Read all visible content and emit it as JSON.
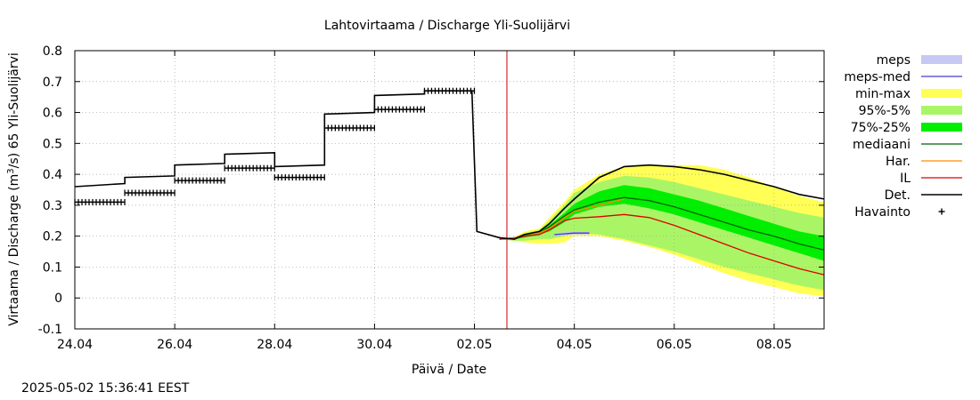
{
  "chart_data": {
    "type": "area",
    "title": "Lahtovirtaama / Discharge  Yli-Suolijärvi",
    "xlabel": "Päivä / Date",
    "ylabel": "Virtaama / Discharge (m³/s)  65 Yli-Suolijärvi",
    "ylabel_parts": {
      "pre": "Virtaama / Discharge (m",
      "sup": "3",
      "post": "/s)  65 Yli-Suolijärvi"
    },
    "x_axis_unit": "days since 24.04 00:00",
    "xlim": [
      0,
      15
    ],
    "ylim": [
      -0.1,
      0.8
    ],
    "x_ticks": [
      {
        "x": 0,
        "label": "24.04"
      },
      {
        "x": 2,
        "label": "26.04"
      },
      {
        "x": 4,
        "label": "28.04"
      },
      {
        "x": 6,
        "label": "30.04"
      },
      {
        "x": 8,
        "label": "02.05"
      },
      {
        "x": 10,
        "label": "04.05"
      },
      {
        "x": 12,
        "label": "06.05"
      },
      {
        "x": 14,
        "label": "08.05"
      }
    ],
    "y_ticks": [
      {
        "y": -0.1,
        "label": "-0.1"
      },
      {
        "y": 0,
        "label": "0"
      },
      {
        "y": 0.1,
        "label": "0.1"
      },
      {
        "y": 0.2,
        "label": "0.2"
      },
      {
        "y": 0.3,
        "label": "0.3"
      },
      {
        "y": 0.4,
        "label": "0.4"
      },
      {
        "y": 0.5,
        "label": "0.5"
      },
      {
        "y": 0.6,
        "label": "0.6"
      },
      {
        "y": 0.7,
        "label": "0.7"
      },
      {
        "y": 0.8,
        "label": "0.8"
      }
    ],
    "grid": true,
    "now_line_x": 8.65,
    "now_line_color": "#cc0000",
    "legend_position": "right",
    "legend": [
      {
        "label": "meps",
        "type": "box",
        "color": "#c8c8f5"
      },
      {
        "label": "meps-med",
        "type": "line",
        "color": "#4040c0"
      },
      {
        "label": "min-max",
        "type": "box",
        "color": "#ffff55"
      },
      {
        "label": "95%-5%",
        "type": "box",
        "color": "#aaf566"
      },
      {
        "label": "75%-25%",
        "type": "box",
        "color": "#00ee00"
      },
      {
        "label": "mediaani",
        "type": "line",
        "color": "#006400"
      },
      {
        "label": "Har.",
        "type": "line",
        "color": "#ff8c00"
      },
      {
        "label": "IL",
        "type": "line",
        "color": "#dd0000"
      },
      {
        "label": "Det.",
        "type": "line",
        "color": "#000000"
      },
      {
        "label": "Havainto",
        "type": "marker",
        "color": "#000000"
      }
    ],
    "series": [
      {
        "name": "min-max",
        "kind": "band",
        "x": [
          8.5,
          8.8,
          9.0,
          9.3,
          9.5,
          9.8,
          10.0,
          10.5,
          11.0,
          11.5,
          12.0,
          12.5,
          13.0,
          13.5,
          14.0,
          14.5,
          15.0
        ],
        "lower": [
          0.19,
          0.185,
          0.18,
          0.175,
          0.175,
          0.18,
          0.2,
          0.2,
          0.185,
          0.165,
          0.14,
          0.11,
          0.08,
          0.055,
          0.035,
          0.015,
          0.005
        ],
        "upper": [
          0.19,
          0.195,
          0.215,
          0.225,
          0.26,
          0.31,
          0.35,
          0.4,
          0.425,
          0.43,
          0.43,
          0.43,
          0.415,
          0.39,
          0.36,
          0.33,
          0.31
        ]
      },
      {
        "name": "95%-5%",
        "kind": "band",
        "x": [
          8.5,
          8.8,
          9.0,
          9.3,
          9.5,
          9.8,
          10.0,
          10.5,
          11.0,
          11.5,
          12.0,
          12.5,
          13.0,
          13.5,
          14.0,
          14.5,
          15.0
        ],
        "lower": [
          0.19,
          0.185,
          0.185,
          0.19,
          0.19,
          0.2,
          0.21,
          0.205,
          0.19,
          0.17,
          0.15,
          0.125,
          0.1,
          0.08,
          0.06,
          0.04,
          0.025
        ],
        "upper": [
          0.19,
          0.195,
          0.21,
          0.22,
          0.25,
          0.3,
          0.34,
          0.375,
          0.395,
          0.39,
          0.375,
          0.355,
          0.335,
          0.315,
          0.295,
          0.275,
          0.26
        ]
      },
      {
        "name": "75%-25%",
        "kind": "band",
        "x": [
          8.5,
          8.8,
          9.0,
          9.3,
          9.5,
          9.8,
          10.0,
          10.5,
          11.0,
          11.5,
          12.0,
          12.5,
          13.0,
          13.5,
          14.0,
          14.5,
          15.0
        ],
        "lower": [
          0.19,
          0.19,
          0.195,
          0.205,
          0.215,
          0.245,
          0.27,
          0.295,
          0.305,
          0.29,
          0.27,
          0.245,
          0.22,
          0.195,
          0.17,
          0.145,
          0.12
        ],
        "upper": [
          0.19,
          0.195,
          0.205,
          0.215,
          0.235,
          0.275,
          0.305,
          0.345,
          0.365,
          0.355,
          0.335,
          0.315,
          0.29,
          0.265,
          0.24,
          0.215,
          0.2
        ]
      },
      {
        "name": "meps",
        "kind": "band",
        "x": [
          9.6,
          10.0,
          10.3
        ],
        "lower": [
          0.2,
          0.205,
          0.205
        ],
        "upper": [
          0.21,
          0.215,
          0.215
        ]
      },
      {
        "name": "meps-med",
        "kind": "line",
        "x": [
          9.6,
          10.0,
          10.3
        ],
        "y": [
          0.205,
          0.21,
          0.21
        ]
      },
      {
        "name": "mediaani",
        "kind": "line",
        "x": [
          8.5,
          8.8,
          9.0,
          9.3,
          9.5,
          9.8,
          10.0,
          10.5,
          11.0,
          11.5,
          12.0,
          12.5,
          13.0,
          13.5,
          14.0,
          14.5,
          15.0
        ],
        "y": [
          0.19,
          0.195,
          0.205,
          0.21,
          0.23,
          0.265,
          0.285,
          0.31,
          0.325,
          0.315,
          0.295,
          0.27,
          0.245,
          0.22,
          0.2,
          0.175,
          0.155
        ]
      },
      {
        "name": "Har.",
        "kind": "line",
        "x": [
          8.5,
          8.8,
          9.0,
          9.3,
          9.5,
          9.8,
          10.0,
          10.5,
          11.0
        ],
        "y": [
          0.19,
          0.195,
          0.205,
          0.21,
          0.225,
          0.26,
          0.28,
          0.3,
          0.32
        ]
      },
      {
        "name": "IL",
        "kind": "line",
        "x": [
          8.5,
          8.8,
          9.0,
          9.3,
          9.5,
          9.8,
          10.0,
          10.5,
          11.0,
          11.5,
          12.0,
          12.5,
          13.0,
          13.5,
          14.0,
          14.5,
          15.0
        ],
        "y": [
          0.19,
          0.193,
          0.2,
          0.205,
          0.22,
          0.25,
          0.258,
          0.263,
          0.27,
          0.26,
          0.235,
          0.205,
          0.175,
          0.145,
          0.12,
          0.095,
          0.075
        ]
      },
      {
        "name": "Det.",
        "kind": "line",
        "x": [
          0.0,
          1.0,
          1.0,
          2.0,
          2.0,
          3.0,
          3.0,
          4.0,
          4.0,
          5.0,
          5.0,
          6.0,
          6.0,
          7.0,
          7.0,
          7.95,
          8.05,
          8.5,
          8.8,
          9.0,
          9.3,
          9.5,
          9.8,
          10.0,
          10.5,
          11.0,
          11.5,
          12.0,
          12.5,
          13.0,
          13.5,
          14.0,
          14.5,
          15.0
        ],
        "y": [
          0.36,
          0.37,
          0.39,
          0.395,
          0.43,
          0.435,
          0.465,
          0.47,
          0.425,
          0.43,
          0.595,
          0.6,
          0.655,
          0.66,
          0.67,
          0.67,
          0.215,
          0.195,
          0.19,
          0.205,
          0.215,
          0.24,
          0.29,
          0.32,
          0.39,
          0.425,
          0.43,
          0.425,
          0.415,
          0.4,
          0.38,
          0.36,
          0.335,
          0.32
        ]
      },
      {
        "name": "Havainto",
        "kind": "marker_segments",
        "segments": [
          {
            "x": [
              0.0,
              1.0
            ],
            "y": 0.31
          },
          {
            "x": [
              1.0,
              2.0
            ],
            "y": 0.34
          },
          {
            "x": [
              2.0,
              3.0
            ],
            "y": 0.38
          },
          {
            "x": [
              3.0,
              4.0
            ],
            "y": 0.42
          },
          {
            "x": [
              4.0,
              5.0
            ],
            "y": 0.39
          },
          {
            "x": [
              5.0,
              6.0
            ],
            "y": 0.55
          },
          {
            "x": [
              6.0,
              7.0
            ],
            "y": 0.61
          },
          {
            "x": [
              7.0,
              8.0
            ],
            "y": 0.67
          }
        ]
      }
    ]
  },
  "footer": {
    "timestamp": "2025-05-02 15:36:41 EEST"
  }
}
